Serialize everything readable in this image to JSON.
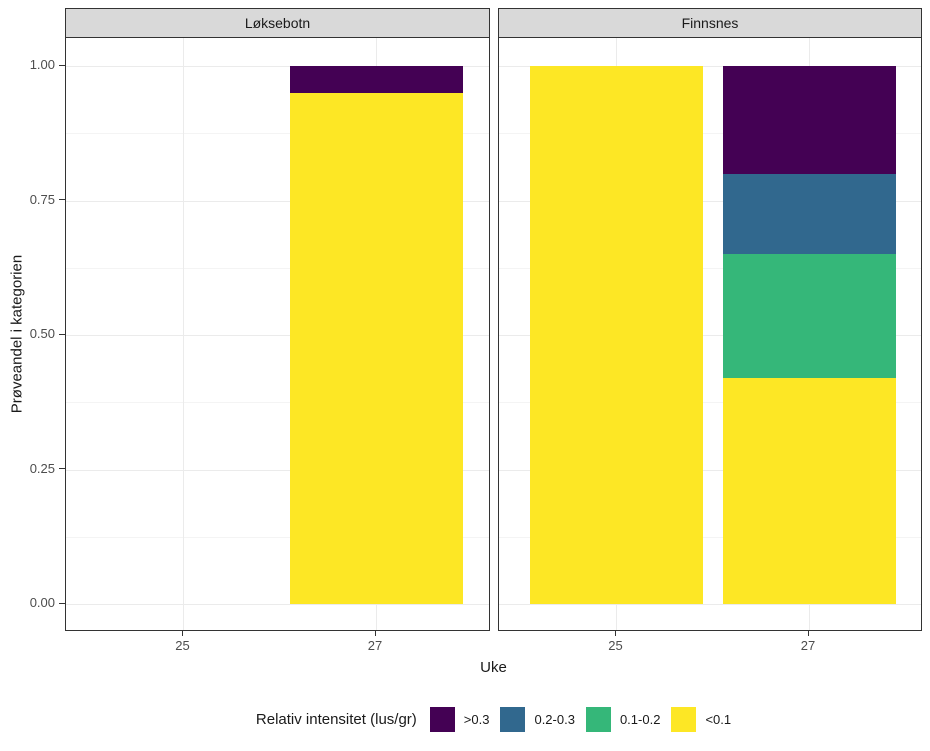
{
  "chart_data": {
    "type": "bar",
    "stacked": true,
    "xlabel": "Uke",
    "ylabel": "Prøveandel i kategorien",
    "ylim": [
      0,
      1
    ],
    "yticks": [
      {
        "label": "0.00",
        "value": 0
      },
      {
        "label": "0.25",
        "value": 0.25
      },
      {
        "label": "0.50",
        "value": 0.5
      },
      {
        "label": "0.75",
        "value": 0.75
      },
      {
        "label": "1.00",
        "value": 1
      }
    ],
    "stack_order_bottom_to_top": [
      "<0.1",
      "0.1-0.2",
      "0.2-0.3",
      ">0.3"
    ],
    "colors": {
      "<0.1": "#fde725",
      "0.1-0.2": "#35b779",
      "0.2-0.3": "#31688e",
      ">0.3": "#440154"
    },
    "facets": [
      {
        "label": "Løksebotn",
        "categories": [
          "25",
          "27"
        ],
        "bars": [
          {
            "week": "25",
            "segments": []
          },
          {
            "week": "27",
            "segments": [
              {
                "category": "<0.1",
                "value": 0.95
              },
              {
                "category": ">0.3",
                "value": 0.05
              }
            ]
          }
        ]
      },
      {
        "label": "Finnsnes",
        "categories": [
          "25",
          "27"
        ],
        "bars": [
          {
            "week": "25",
            "segments": [
              {
                "category": "<0.1",
                "value": 1.0
              }
            ]
          },
          {
            "week": "27",
            "segments": [
              {
                "category": "<0.1",
                "value": 0.42
              },
              {
                "category": "0.1-0.2",
                "value": 0.23
              },
              {
                "category": "0.2-0.3",
                "value": 0.15
              },
              {
                "category": ">0.3",
                "value": 0.2
              }
            ]
          }
        ]
      }
    ],
    "legend": {
      "title": "Relativ intensitet (lus/gr)",
      "position": "bottom",
      "entries": [
        {
          "label": ">0.3",
          "color": "#440154"
        },
        {
          "label": "0.2-0.3",
          "color": "#31688e"
        },
        {
          "label": "0.1-0.2",
          "color": "#35b779"
        },
        {
          "label": "<0.1",
          "color": "#fde725"
        }
      ]
    },
    "grid": {
      "y_minor": [
        0.125,
        0.375,
        0.625,
        0.875
      ],
      "major_color": "#ebebeb",
      "minor_color": "#f4f4f4"
    },
    "theme": {
      "strip_bg": "#d9d9d9",
      "border_color": "#333333",
      "tick_label_color": "#4d4d4d",
      "background": "#ffffff"
    }
  }
}
